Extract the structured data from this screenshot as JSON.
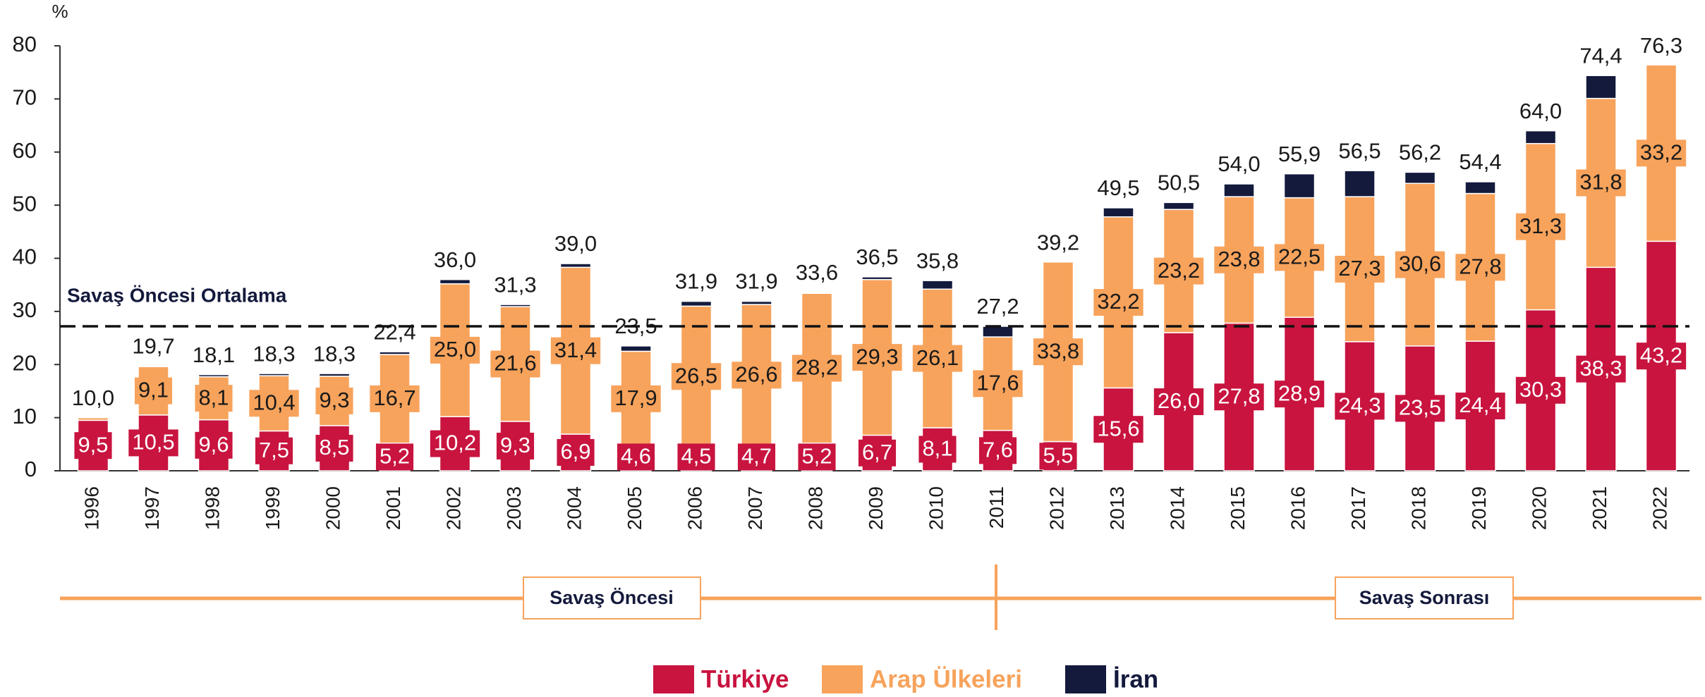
{
  "chart_data": {
    "type": "stacked_bar",
    "y_label": "%",
    "categories": [
      "1996",
      "1997",
      "1998",
      "1999",
      "2000",
      "2001",
      "2002",
      "2003",
      "2004",
      "2005",
      "2006",
      "2007",
      "2008",
      "2009",
      "2010",
      "2011",
      "2012",
      "2013",
      "2014",
      "2015",
      "2016",
      "2017",
      "2018",
      "2019",
      "2020",
      "2021",
      "2022"
    ],
    "series": [
      {
        "name": "Türkiye",
        "color": "#c8143f",
        "label_color": "#ffffff",
        "values": [
          9.5,
          10.5,
          9.6,
          7.5,
          8.5,
          5.2,
          10.2,
          9.3,
          6.9,
          4.6,
          4.5,
          4.7,
          5.2,
          6.7,
          8.1,
          7.6,
          5.5,
          15.6,
          26.0,
          27.8,
          28.9,
          24.3,
          23.5,
          24.4,
          30.3,
          38.3,
          43.2
        ],
        "value_labels": [
          "9,5",
          "10,5",
          "9,6",
          "7,5",
          "8,5",
          "5,2",
          "10,2",
          "9,3",
          "6,9",
          "4,6",
          "4,5",
          "4,7",
          "5,2",
          "6,7",
          "8,1",
          "7,6",
          "5,5",
          "15,6",
          "26,0",
          "27,8",
          "28,9",
          "24,3",
          "23,5",
          "24,4",
          "30,3",
          "38,3",
          "43,2"
        ]
      },
      {
        "name": "Arap Ülkeleri",
        "color": "#f7a35c",
        "label_color": "#1a1a1a",
        "values": [
          0.5,
          9.1,
          8.1,
          10.4,
          9.3,
          16.7,
          25.0,
          21.6,
          31.4,
          17.9,
          26.5,
          26.6,
          28.2,
          29.3,
          26.1,
          17.6,
          33.8,
          32.2,
          23.2,
          23.8,
          22.5,
          27.3,
          30.6,
          27.8,
          31.3,
          31.8,
          33.2
        ],
        "value_labels": [
          null,
          "9,1",
          "8,1",
          "10,4",
          "9,3",
          "16,7",
          "25,0",
          "21,6",
          "31,4",
          "17,9",
          "26,5",
          "26,6",
          "28,2",
          "29,3",
          "26,1",
          "17,6",
          "33,8",
          "32,2",
          "23,2",
          "23,8",
          "22,5",
          "27,3",
          "30,6",
          "27,8",
          "31,3",
          "31,8",
          "33,2"
        ]
      },
      {
        "name": "İran",
        "color": "#141a3c",
        "values": [
          0,
          0.1,
          0.4,
          0.4,
          0.5,
          0.5,
          0.8,
          0.4,
          0.7,
          1.0,
          0.9,
          0.6,
          0.2,
          0.5,
          1.6,
          2.0,
          0,
          1.7,
          1.3,
          2.4,
          4.5,
          4.9,
          2.1,
          2.2,
          2.4,
          4.3,
          0
        ]
      }
    ],
    "totals": [
      10.0,
      19.7,
      18.1,
      18.3,
      18.3,
      22.4,
      36.0,
      31.3,
      39.0,
      23.5,
      31.9,
      31.9,
      33.6,
      36.5,
      35.8,
      27.2,
      39.2,
      49.5,
      50.5,
      54.0,
      55.9,
      56.5,
      56.2,
      54.4,
      64.0,
      74.4,
      76.3
    ],
    "total_labels": [
      "10,0",
      "19,7",
      "18,1",
      "18,3",
      "18,3",
      "22,4",
      "36,0",
      "31,3",
      "39,0",
      "23,5",
      "31,9",
      "31,9",
      "33,6",
      "36,5",
      "35,8",
      "27,2",
      "39,2",
      "49,5",
      "50,5",
      "54,0",
      "55,9",
      "56,5",
      "56,2",
      "54,4",
      "64,0",
      "74,4",
      "76,3"
    ],
    "reference_line": {
      "label": "Savaş Öncesi Ortalama",
      "value": 27.2
    },
    "periods": [
      "Savaş Öncesi",
      "Savaş Sonrası"
    ],
    "ylim": [
      0,
      80
    ],
    "yticks": [
      0,
      10,
      20,
      30,
      40,
      50,
      60,
      70,
      80
    ],
    "grid": false
  }
}
